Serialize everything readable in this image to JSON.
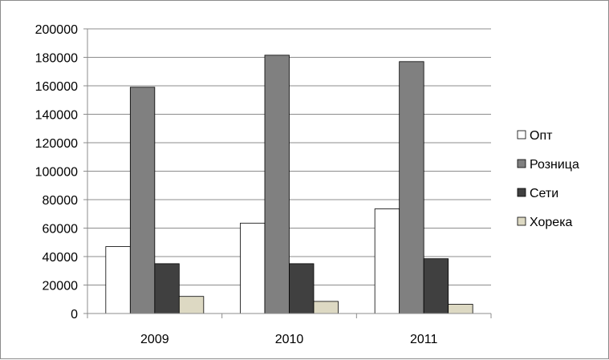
{
  "chart_data": {
    "type": "bar",
    "categories": [
      "2009",
      "2010",
      "2011"
    ],
    "series": [
      {
        "name": "Опт",
        "values": [
          47000,
          63500,
          73500
        ],
        "color": "#ffffff"
      },
      {
        "name": "Розница",
        "values": [
          159000,
          181500,
          177000
        ],
        "color": "#808080"
      },
      {
        "name": "Сети",
        "values": [
          35000,
          35000,
          38500
        ],
        "color": "#404040"
      },
      {
        "name": "Хорека",
        "values": [
          12000,
          8500,
          6500
        ],
        "color": "#ddd9c3"
      }
    ],
    "yticks": [
      "0",
      "20000",
      "40000",
      "60000",
      "80000",
      "100000",
      "120000",
      "140000",
      "160000",
      "180000",
      "200000"
    ],
    "ylim": [
      0,
      200000
    ],
    "grid": true,
    "legend_position": "right"
  }
}
